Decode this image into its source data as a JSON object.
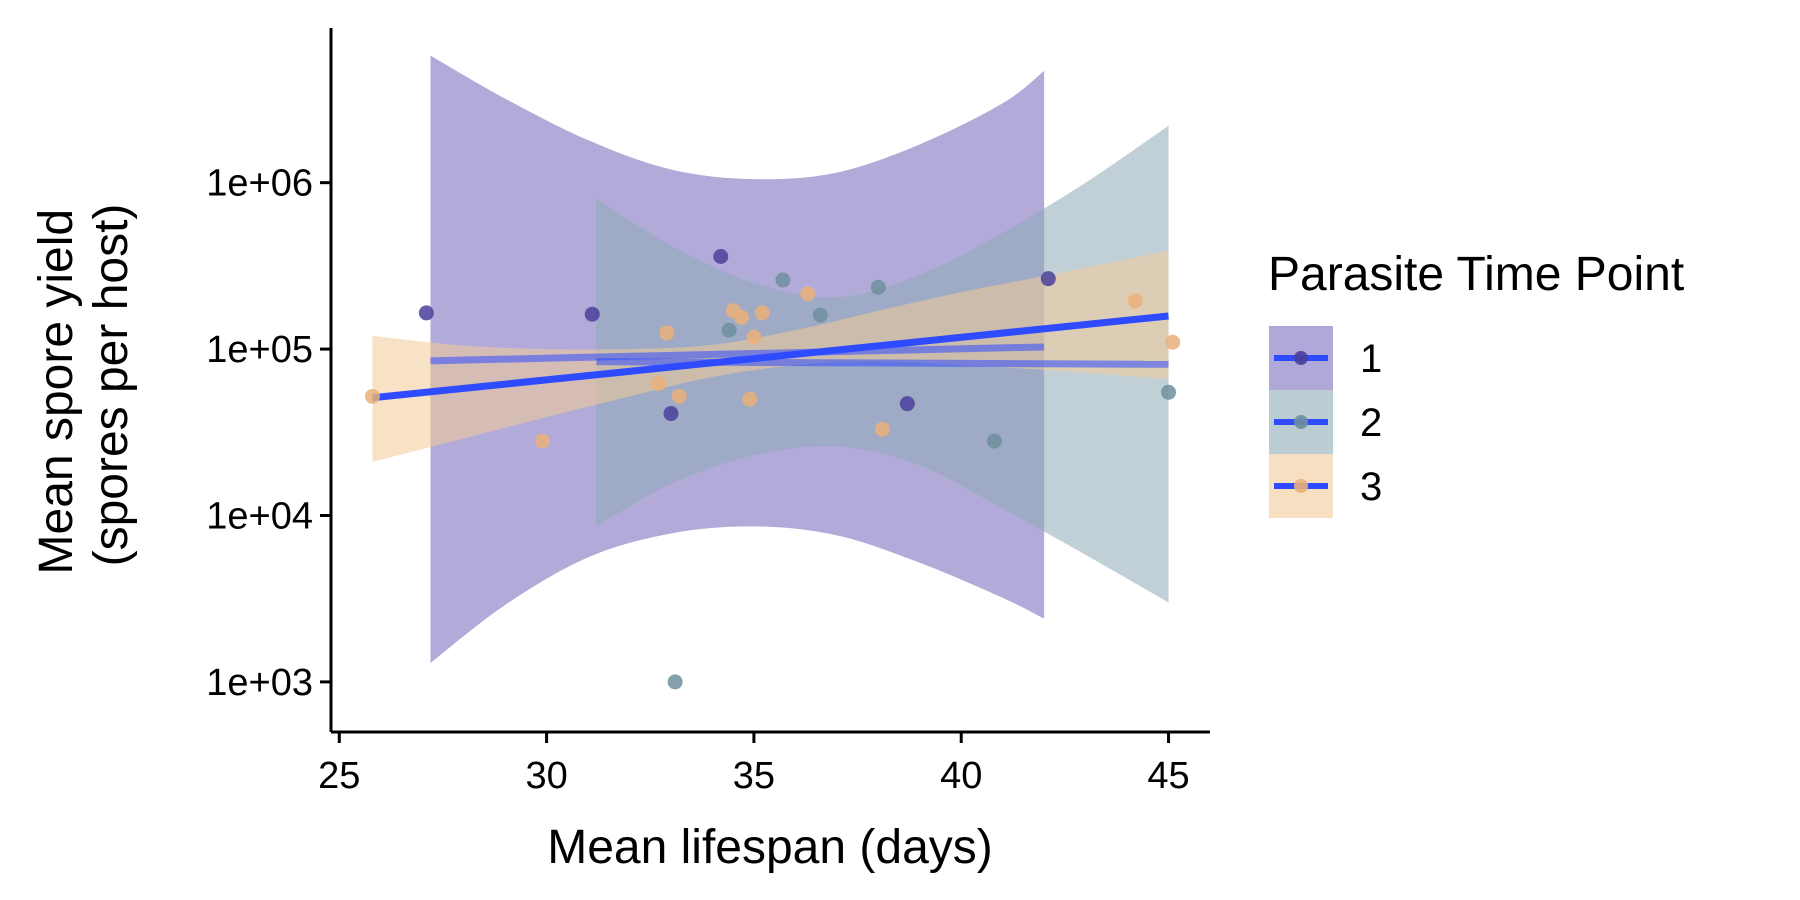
{
  "chart_data": {
    "type": "scatter",
    "title": "",
    "xlabel": "Mean lifespan (days)",
    "ylabel_lines": [
      "Mean spore yield",
      "(spores per host)"
    ],
    "xlim": [
      24.8,
      46.0
    ],
    "ylim": [
      500,
      8500000
    ],
    "yscale": "log10",
    "x_ticks": [
      25,
      30,
      35,
      40,
      45
    ],
    "x_tick_labels": [
      "25",
      "30",
      "35",
      "40",
      "45"
    ],
    "y_ticks": [
      1000,
      10000,
      100000,
      1000000
    ],
    "y_tick_labels": [
      "1e+03",
      "1e+04",
      "1e+05",
      "1e+06"
    ],
    "grid": false,
    "legend": {
      "title": "Parasite Time Point",
      "position": "right",
      "line_color": "#2f4bff",
      "entries": [
        {
          "label": "1",
          "fill": "#7b6ec0",
          "point": "#4a3f9a"
        },
        {
          "label": "2",
          "fill": "#8eaab6",
          "point": "#6d8f9c"
        },
        {
          "label": "3",
          "fill": "#f2ca98",
          "point": "#eab07a"
        }
      ]
    },
    "series": [
      {
        "name": "1",
        "color": "#4a3f9a",
        "band_color": "#7b6ec0",
        "band_opacity": 0.58,
        "points": [
          {
            "x": 27.1,
            "y": 165000
          },
          {
            "x": 31.1,
            "y": 162000
          },
          {
            "x": 33.0,
            "y": 41000
          },
          {
            "x": 38.7,
            "y": 47000
          },
          {
            "x": 34.2,
            "y": 360000
          },
          {
            "x": 42.1,
            "y": 265000
          }
        ],
        "fit": {
          "x": [
            27.2,
            42.0
          ],
          "y": [
            85000,
            103000
          ]
        },
        "band": {
          "x": [
            27.2,
            29,
            31,
            33,
            35,
            37,
            39,
            41,
            42.0
          ],
          "upper": [
            5800000,
            3200000,
            1800000,
            1200000,
            1050000,
            1150000,
            1700000,
            3000000,
            4700000
          ],
          "lower": [
            1300,
            2900,
            5600,
            7800,
            8600,
            7600,
            5200,
            3200,
            2400
          ]
        }
      },
      {
        "name": "2",
        "color": "#6d8f9c",
        "band_color": "#8eaab6",
        "band_opacity": 0.55,
        "points": [
          {
            "x": 33.1,
            "y": 1000
          },
          {
            "x": 34.4,
            "y": 130000
          },
          {
            "x": 35.7,
            "y": 260000
          },
          {
            "x": 36.6,
            "y": 160000
          },
          {
            "x": 38.0,
            "y": 235000
          },
          {
            "x": 40.8,
            "y": 28000
          },
          {
            "x": 45.0,
            "y": 55000
          }
        ],
        "fit": {
          "x": [
            31.2,
            45.0
          ],
          "y": [
            84000,
            81000
          ]
        },
        "band": {
          "x": [
            31.2,
            33,
            35,
            37,
            39,
            41,
            43,
            45.0
          ],
          "upper": [
            800000,
            420000,
            250000,
            205000,
            280000,
            500000,
            1000000,
            2200000
          ],
          "lower": [
            8600,
            15500,
            23000,
            26000,
            20000,
            11000,
            5800,
            3000
          ]
        }
      },
      {
        "name": "3",
        "color": "#eab07a",
        "band_color": "#f2ca98",
        "band_opacity": 0.55,
        "points": [
          {
            "x": 25.8,
            "y": 52000
          },
          {
            "x": 29.9,
            "y": 28000
          },
          {
            "x": 32.7,
            "y": 62000
          },
          {
            "x": 32.9,
            "y": 125000
          },
          {
            "x": 33.2,
            "y": 52000
          },
          {
            "x": 34.5,
            "y": 170000
          },
          {
            "x": 34.7,
            "y": 155000
          },
          {
            "x": 34.9,
            "y": 50000
          },
          {
            "x": 35.0,
            "y": 118000
          },
          {
            "x": 35.2,
            "y": 165000
          },
          {
            "x": 36.3,
            "y": 215000
          },
          {
            "x": 38.1,
            "y": 33000
          },
          {
            "x": 44.2,
            "y": 195000
          },
          {
            "x": 45.1,
            "y": 110000
          }
        ],
        "fit": {
          "x": [
            25.8,
            45.0
          ],
          "y": [
            51000,
            158000
          ]
        },
        "band": {
          "x": [
            25.8,
            28,
            30,
            32,
            34,
            36,
            38,
            40,
            42,
            45.0
          ],
          "upper": [
            120000,
            105000,
            100000,
            100000,
            106000,
            130000,
            170000,
            220000,
            275000,
            390000
          ],
          "lower": [
            21000,
            29000,
            39000,
            52000,
            68000,
            80000,
            84000,
            80000,
            75000,
            66000
          ]
        }
      }
    ]
  }
}
